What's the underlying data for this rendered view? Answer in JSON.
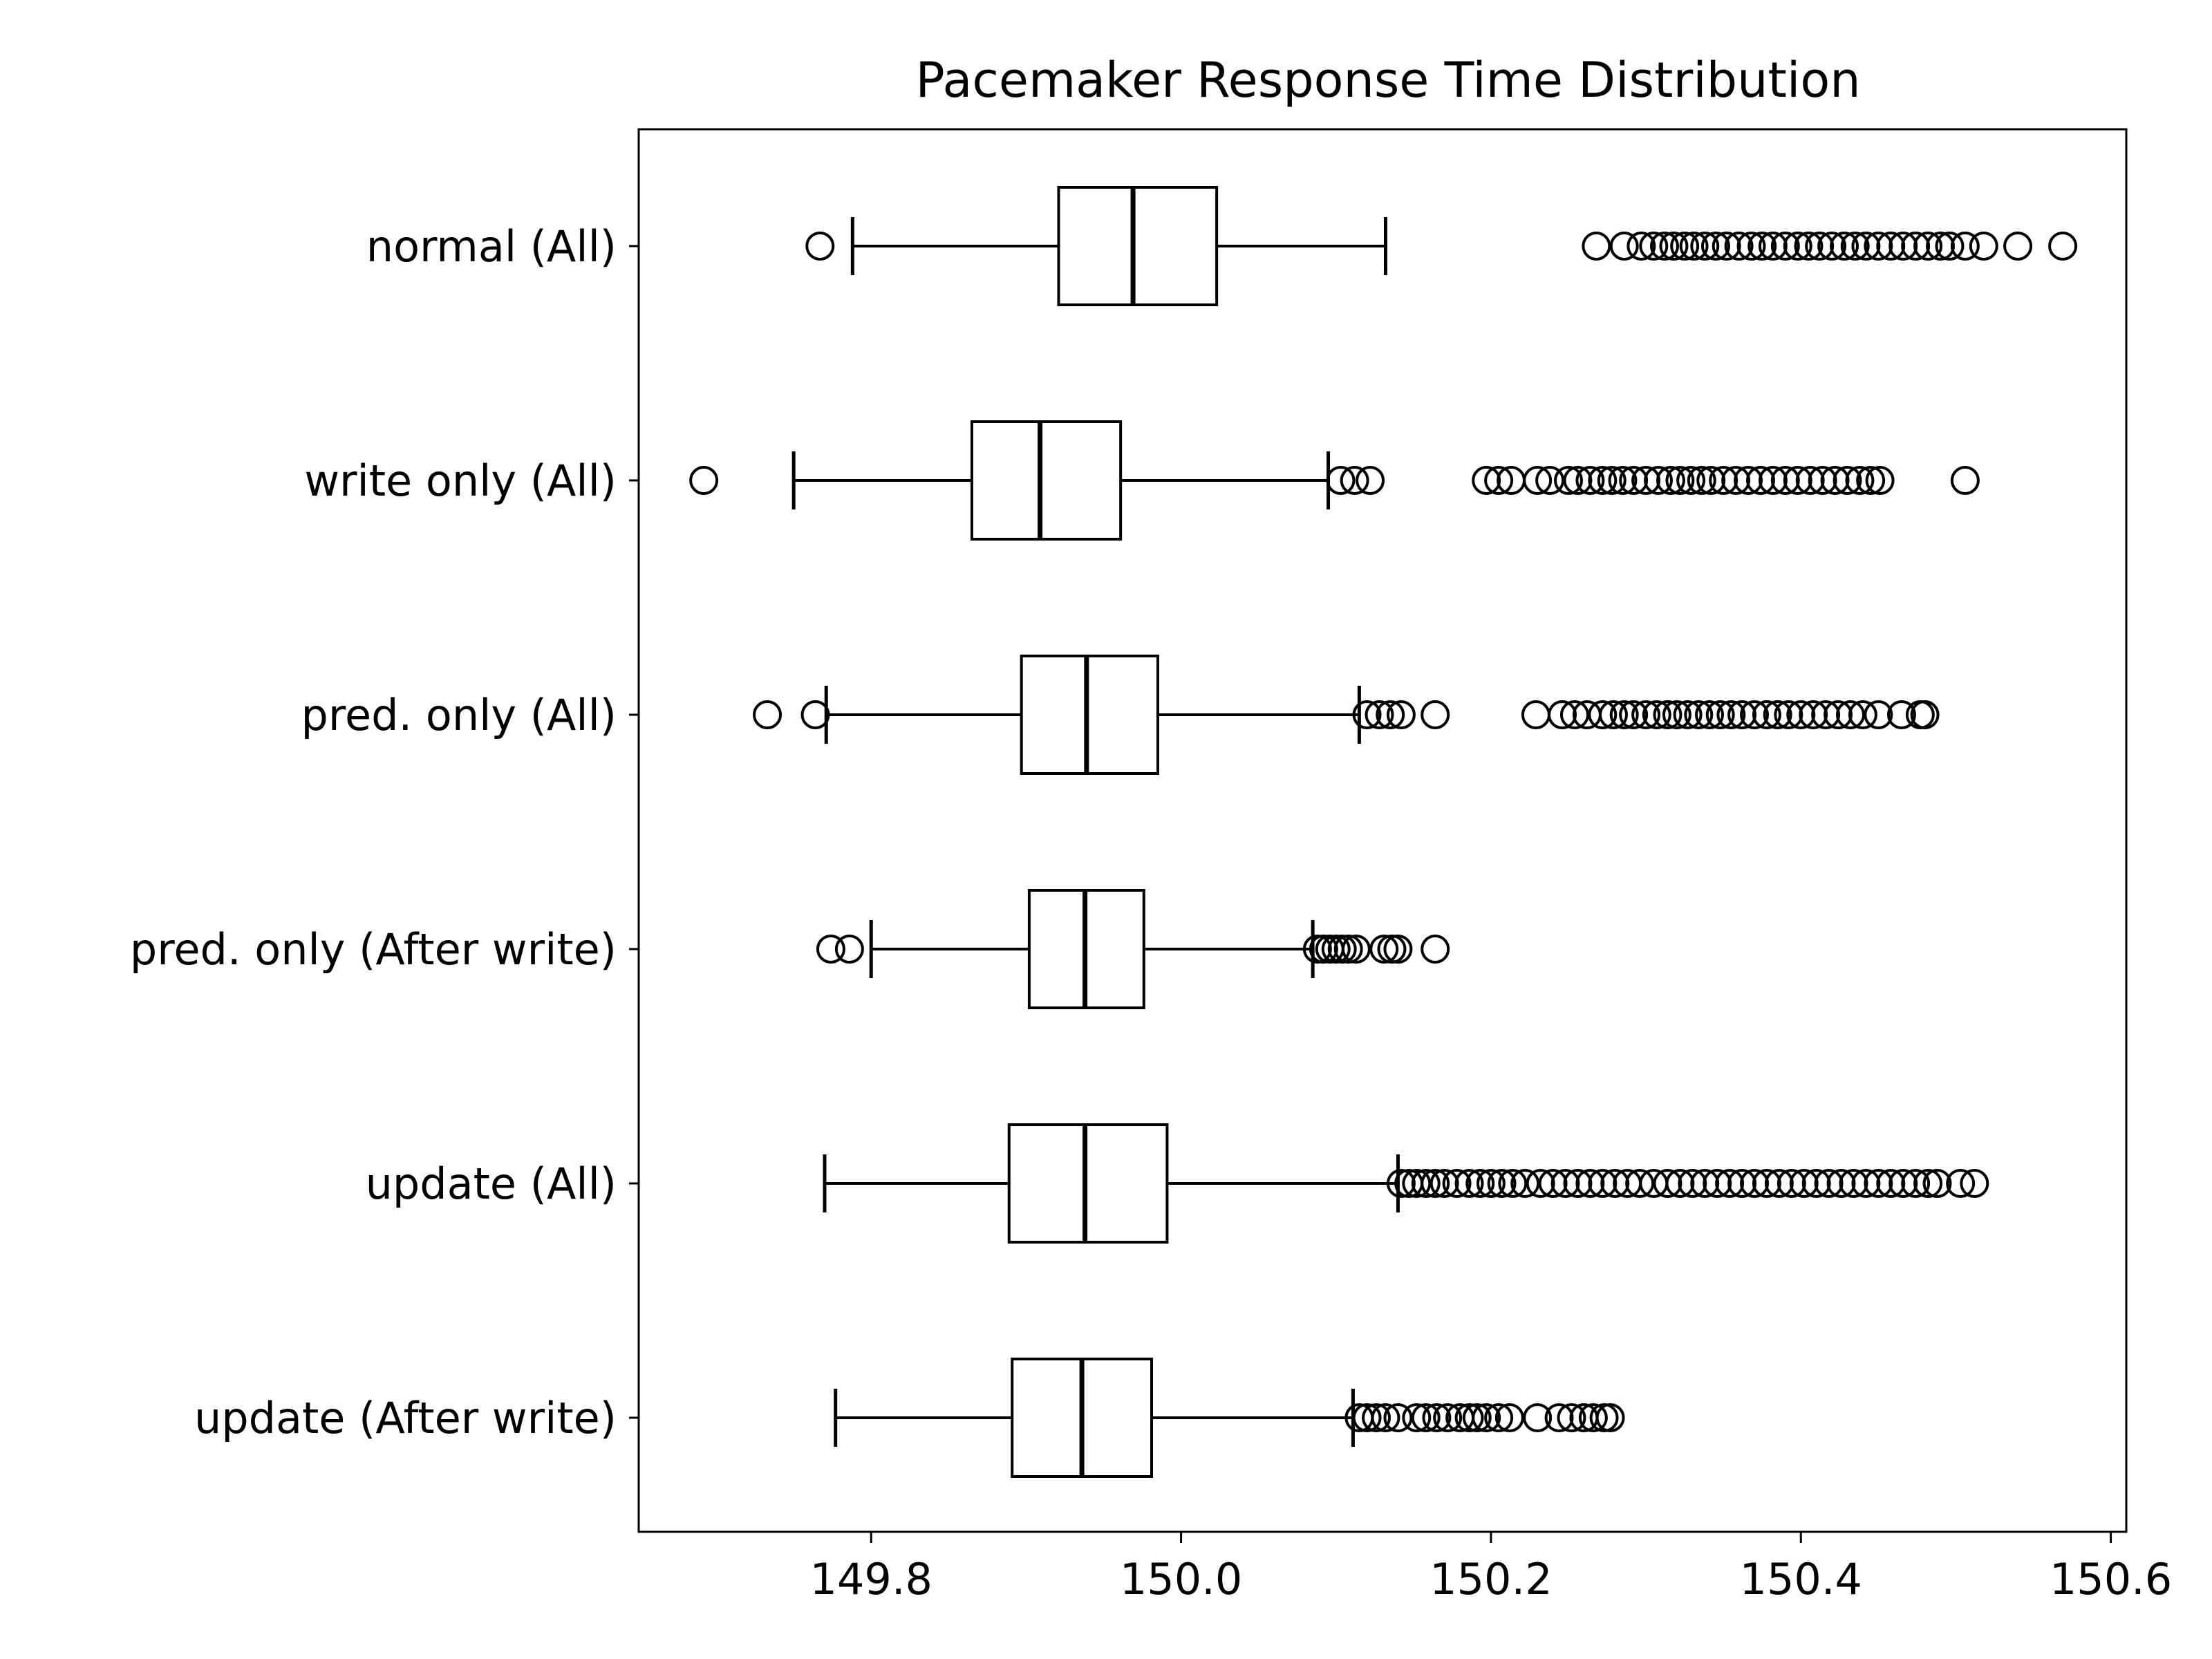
{
  "chart_data": {
    "type": "boxplot",
    "orientation": "horizontal",
    "title": "Pacemaker Response Time Distribution",
    "xlabel": "",
    "ylabel": "",
    "xlim": [
      149.65,
      150.61
    ],
    "xticks": [
      149.8,
      150.0,
      150.2,
      150.4,
      150.6
    ],
    "xtick_labels": [
      "149.8",
      "150.0",
      "150.2",
      "150.4",
      "150.6"
    ],
    "grid": false,
    "colors": {
      "line": "#000000",
      "background": "#ffffff"
    },
    "categories": [
      "normal (All)",
      "write only (All)",
      "pred. only (All)",
      "pred. only (After write)",
      "update (All)",
      "update (After write)"
    ],
    "boxes": [
      {
        "label": "normal (All)",
        "whisker_low": 149.788,
        "q1": 149.921,
        "median": 149.969,
        "q3": 150.023,
        "whisker_high": 150.132,
        "outliers": [
          149.767,
          150.268,
          150.286,
          150.297,
          150.305,
          150.312,
          150.318,
          150.325,
          150.331,
          150.338,
          150.345,
          150.352,
          150.36,
          150.368,
          150.375,
          150.382,
          150.39,
          150.398,
          150.405,
          150.412,
          150.42,
          150.428,
          150.435,
          150.442,
          150.45,
          150.458,
          150.466,
          150.474,
          150.482,
          150.49,
          150.496,
          150.506,
          150.518,
          150.54,
          150.569
        ]
      },
      {
        "label": "write only (All)",
        "whisker_low": 149.75,
        "q1": 149.865,
        "median": 149.909,
        "q3": 149.961,
        "whisker_high": 150.095,
        "outliers": [
          149.692,
          150.103,
          150.112,
          150.122,
          150.197,
          150.205,
          150.213,
          150.23,
          150.238,
          150.25,
          150.256,
          150.264,
          150.272,
          150.278,
          150.285,
          150.292,
          150.3,
          150.308,
          150.316,
          150.322,
          150.329,
          150.336,
          150.342,
          150.35,
          150.358,
          150.366,
          150.374,
          150.382,
          150.39,
          150.398,
          150.406,
          150.414,
          150.422,
          150.43,
          150.438,
          150.445,
          150.451,
          150.506
        ]
      },
      {
        "label": "pred. only (All)",
        "whisker_low": 149.771,
        "q1": 149.897,
        "median": 149.939,
        "q3": 149.985,
        "whisker_high": 150.115,
        "outliers": [
          149.733,
          149.764,
          150.12,
          150.128,
          150.135,
          150.142,
          150.164,
          150.229,
          150.246,
          150.254,
          150.262,
          150.272,
          150.279,
          150.286,
          150.292,
          150.3,
          150.307,
          150.314,
          150.32,
          150.327,
          150.334,
          150.341,
          150.348,
          150.355,
          150.362,
          150.37,
          150.378,
          150.385,
          150.392,
          150.4,
          150.408,
          150.416,
          150.424,
          150.432,
          150.44,
          150.45,
          150.465,
          150.477,
          150.48
        ]
      },
      {
        "label": "pred. only (After write)",
        "whisker_low": 149.8,
        "q1": 149.902,
        "median": 149.938,
        "q3": 149.976,
        "whisker_high": 150.085,
        "outliers": [
          149.774,
          149.786,
          150.088,
          150.092,
          150.096,
          150.1,
          150.104,
          150.108,
          150.113,
          150.131,
          150.136,
          150.14,
          150.164
        ]
      },
      {
        "label": "update (All)",
        "whisker_low": 149.77,
        "q1": 149.889,
        "median": 149.938,
        "q3": 149.991,
        "whisker_high": 150.14,
        "outliers": [
          150.142,
          150.147,
          150.152,
          150.158,
          150.164,
          150.17,
          150.178,
          150.186,
          150.193,
          150.2,
          150.207,
          150.214,
          150.222,
          150.232,
          150.24,
          150.248,
          150.256,
          150.264,
          150.272,
          150.28,
          150.288,
          150.296,
          150.305,
          150.314,
          150.322,
          150.33,
          150.338,
          150.346,
          150.354,
          150.362,
          150.37,
          150.378,
          150.386,
          150.394,
          150.402,
          150.41,
          150.418,
          150.426,
          150.434,
          150.442,
          150.45,
          150.458,
          150.466,
          150.474,
          150.482,
          150.488,
          150.503,
          150.512
        ]
      },
      {
        "label": "update (After write)",
        "whisker_low": 149.777,
        "q1": 149.891,
        "median": 149.936,
        "q3": 149.981,
        "whisker_high": 150.111,
        "outliers": [
          150.115,
          150.12,
          150.126,
          150.132,
          150.14,
          150.152,
          150.158,
          150.165,
          150.172,
          150.18,
          150.186,
          150.191,
          150.197,
          150.205,
          150.212,
          150.23,
          150.244,
          150.252,
          150.26,
          150.266,
          150.273,
          150.277
        ]
      }
    ]
  }
}
